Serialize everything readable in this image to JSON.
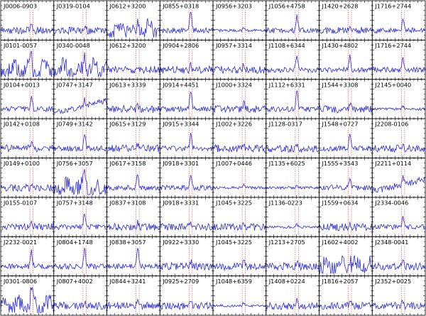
{
  "figure": {
    "line_color": "#2b2bd6",
    "marker_color": "#e04040",
    "frame_color": "#000000"
  },
  "chart_data": {
    "type": "line",
    "layout": "small-multiples grid, 8 columns x 8 rows",
    "title": "",
    "xlabel": "",
    "ylabel": "",
    "grid": false,
    "legend": "none",
    "panels": [
      {
        "label": "J0006-0903",
        "style": "noisy",
        "peak": 0.55
      },
      {
        "label": "J0319-0104",
        "style": "noisy",
        "peak": 0.45
      },
      {
        "label": "J0612+3200",
        "style": "wild",
        "peak": 0.3
      },
      {
        "label": "J0855+0318",
        "style": "spike",
        "peak": 0.9
      },
      {
        "label": "J0956+3203",
        "style": "flat",
        "peak": 0.25
      },
      {
        "label": "J1056+4758",
        "style": "peak",
        "peak": 0.6
      },
      {
        "label": "J1420+2628",
        "style": "noisy",
        "peak": 0.35
      },
      {
        "label": "J1716+2744",
        "style": "peak",
        "peak": 0.55
      },
      {
        "label": "J0101-0057",
        "style": "wild",
        "peak": 0.5
      },
      {
        "label": "J0340-0048",
        "style": "wild",
        "peak": 0.85
      },
      {
        "label": "J0612+3200",
        "style": "noisy",
        "peak": 0.3
      },
      {
        "label": "J0904+2806",
        "style": "noisy",
        "peak": 0.4
      },
      {
        "label": "J0957+3314",
        "style": "noisy",
        "peak": 0.35
      },
      {
        "label": "J1108+6344",
        "style": "peak",
        "peak": 0.65
      },
      {
        "label": "J1430+4802",
        "style": "peak",
        "peak": 0.55
      },
      {
        "label": "J1716+2744",
        "style": "peak",
        "peak": 0.5
      },
      {
        "label": "J0104+0013",
        "style": "peak",
        "peak": 0.6
      },
      {
        "label": "J0747+3147",
        "style": "rising",
        "peak": 0.45
      },
      {
        "label": "J0613+3339",
        "style": "noisy",
        "peak": 0.4
      },
      {
        "label": "J0914+4451",
        "style": "spike",
        "peak": 0.75
      },
      {
        "label": "J1000+3324",
        "style": "noisy",
        "peak": 0.4
      },
      {
        "label": "J1112+6331",
        "style": "spike",
        "peak": 0.8
      },
      {
        "label": "J1544+3308",
        "style": "noisy",
        "peak": 0.4
      },
      {
        "label": "J2145+0040",
        "style": "flat",
        "peak": 0.25
      },
      {
        "label": "J0142+0108",
        "style": "noisy",
        "peak": 0.45
      },
      {
        "label": "J0749+3142",
        "style": "peak",
        "peak": 0.6
      },
      {
        "label": "J0615+3129",
        "style": "noisy",
        "peak": 0.4
      },
      {
        "label": "J0915+3344",
        "style": "peak",
        "peak": 0.6
      },
      {
        "label": "J1002+3226",
        "style": "noisy",
        "peak": 0.35
      },
      {
        "label": "J1128-0317",
        "style": "noisy",
        "peak": 0.4
      },
      {
        "label": "J1548+0727",
        "style": "peak",
        "peak": 0.55
      },
      {
        "label": "J2208-0106",
        "style": "noisy",
        "peak": 0.4
      },
      {
        "label": "J0149+0100",
        "style": "noisy",
        "peak": 0.4
      },
      {
        "label": "J0756+3057",
        "style": "wild",
        "peak": 0.55
      },
      {
        "label": "J0617+3158",
        "style": "peak",
        "peak": 0.55
      },
      {
        "label": "J0918+3301",
        "style": "peak",
        "peak": 0.6
      },
      {
        "label": "J1007+0446",
        "style": "flat",
        "peak": 0.25
      },
      {
        "label": "J1135+6025",
        "style": "flat",
        "peak": 0.2
      },
      {
        "label": "J1555+3543",
        "style": "peak",
        "peak": 0.45
      },
      {
        "label": "J2211+0114",
        "style": "rising",
        "peak": 0.55
      },
      {
        "label": "J0155-0107",
        "style": "noisy",
        "peak": 0.45
      },
      {
        "label": "J0757+3148",
        "style": "peak",
        "peak": 0.6
      },
      {
        "label": "J0837+3108",
        "style": "noisy",
        "peak": 0.35
      },
      {
        "label": "J0918+3331",
        "style": "noisy",
        "peak": 0.4
      },
      {
        "label": "J1045+3225",
        "style": "noisy",
        "peak": 0.4
      },
      {
        "label": "J1136-0223",
        "style": "flat",
        "peak": 0.2
      },
      {
        "label": "J1559+0634",
        "style": "noisy",
        "peak": 0.35
      },
      {
        "label": "J2334-0046",
        "style": "peak",
        "peak": 0.5
      },
      {
        "label": "J2232-0021",
        "style": "peak",
        "peak": 0.6
      },
      {
        "label": "J0804+1748",
        "style": "spike",
        "peak": 0.75
      },
      {
        "label": "J0838+3057",
        "style": "spike",
        "peak": 0.8
      },
      {
        "label": "J0922+3330",
        "style": "noisy",
        "peak": 0.45
      },
      {
        "label": "J1045+3225",
        "style": "noisy",
        "peak": 0.4
      },
      {
        "label": "J1213+2705",
        "style": "noisy",
        "peak": 0.35
      },
      {
        "label": "J1602+4002",
        "style": "wild",
        "peak": 0.55
      },
      {
        "label": "J2348-0041",
        "style": "noisy",
        "peak": 0.4
      },
      {
        "label": "J0301-0806",
        "style": "wild",
        "peak": 0.6
      },
      {
        "label": "J0807+4002",
        "style": "noisy",
        "peak": 0.4
      },
      {
        "label": "J0844+3241",
        "style": "noisy",
        "peak": 0.35
      },
      {
        "label": "J0925+2709",
        "style": "noisy",
        "peak": 0.35
      },
      {
        "label": "J1048+6359",
        "style": "flat",
        "peak": 0.25
      },
      {
        "label": "J1408+0224",
        "style": "noisy",
        "peak": 0.45
      },
      {
        "label": "J1816+2057",
        "style": "noisy",
        "peak": 0.4
      },
      {
        "label": "J2352+0025",
        "style": "noisy",
        "peak": 0.4
      }
    ]
  }
}
